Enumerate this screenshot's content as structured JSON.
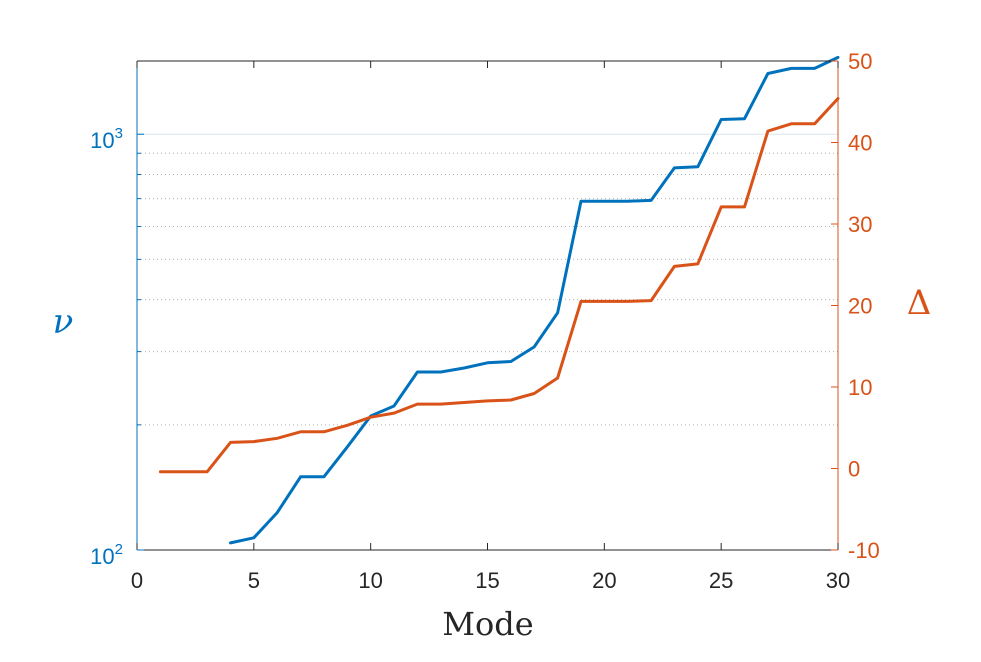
{
  "chart_data": {
    "type": "line",
    "xlabel": "Mode",
    "ylabel_left": "ν",
    "ylabel_right": "Δ",
    "xlim": [
      0,
      30
    ],
    "ylim_left": [
      100,
      1500
    ],
    "ylim_right": [
      -10,
      50
    ],
    "y_left_scale": "log",
    "x_ticks": [
      0,
      5,
      10,
      15,
      20,
      25,
      30
    ],
    "y_left_ticks": [
      {
        "value": 100,
        "base": "10",
        "exp": "2"
      },
      {
        "value": 1000,
        "base": "10",
        "exp": "3"
      }
    ],
    "y_right_ticks": [
      -10,
      0,
      10,
      20,
      30,
      40,
      50
    ],
    "y_right_tick_labels": [
      "-10",
      "0",
      "10",
      "20",
      "30",
      "40",
      "50"
    ],
    "grid": "left-axis minor dotted gridlines",
    "colors": {
      "left": "#0072bd",
      "right": "#d95319",
      "axis": "#262626",
      "grid": "#b0b0b0"
    },
    "series": [
      {
        "axis": "left",
        "x": [
          4,
          5,
          6,
          7,
          8,
          9,
          10,
          11,
          12,
          13,
          14,
          15,
          16,
          17,
          18,
          19,
          20,
          21,
          22,
          23,
          24,
          25,
          26,
          27,
          28,
          29,
          30
        ],
        "values": [
          104,
          107,
          123,
          150,
          150,
          177,
          210,
          222,
          268,
          268,
          274,
          282,
          284,
          308,
          372,
          690,
          690,
          690,
          693,
          830,
          835,
          1085,
          1090,
          1400,
          1440,
          1440,
          1530
        ]
      },
      {
        "axis": "right",
        "x": [
          1,
          2,
          3,
          4,
          5,
          6,
          7,
          8,
          9,
          10,
          11,
          12,
          13,
          14,
          15,
          16,
          17,
          18,
          19,
          20,
          21,
          22,
          23,
          24,
          25,
          26,
          27,
          28,
          29,
          30
        ],
        "values": [
          -0.4,
          -0.4,
          -0.4,
          3.2,
          3.3,
          3.7,
          4.5,
          4.5,
          5.3,
          6.3,
          6.8,
          7.9,
          7.9,
          8.1,
          8.3,
          8.4,
          9.2,
          11.1,
          20.5,
          20.5,
          20.5,
          20.6,
          24.8,
          25.1,
          32.1,
          32.1,
          41.4,
          42.3,
          42.3,
          45.4
        ]
      }
    ]
  }
}
